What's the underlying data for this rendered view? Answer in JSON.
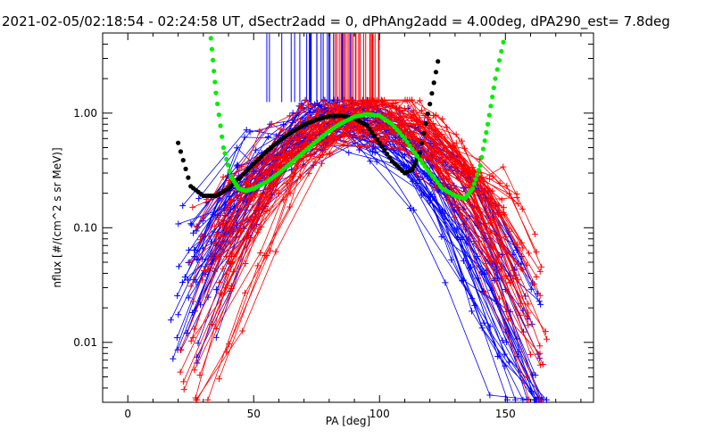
{
  "chart_data": {
    "type": "line",
    "title": "2021-02-05/02:18:54 - 02:24:58 UT, dSectr2add = 0, dPhAng2add = 4.00deg, dPA290_est=   7.8deg",
    "xlabel": "PA [deg]",
    "ylabel": "nflux [#/(cm^2 s sr MeV)]",
    "xlim": [
      -10,
      185
    ],
    "ylim": [
      0.003,
      5.0
    ],
    "yscale": "log",
    "grid": false,
    "x_ticks": [
      0,
      50,
      100,
      150
    ],
    "x_tick_labels": [
      "0",
      "50",
      "100",
      "150"
    ],
    "y_ticks": [
      0.01,
      0.1,
      1.0
    ],
    "y_tick_labels": [
      "0.01",
      "0.10",
      "1.00"
    ],
    "colors": {
      "blue_series": "#0000ff",
      "red_series": "#ff0000",
      "black_fit": "#000000",
      "green_fit": "#00ee00"
    },
    "series": [
      {
        "color": "#0000ff",
        "marker": "plus",
        "profile": {
          "peak_pa": 85,
          "peak_flux": 0.9,
          "pa_range": [
            18,
            165
          ],
          "low_flux_range": [
            0.004,
            0.25
          ]
        },
        "spikes_pa_range": [
          55,
          93
        ]
      },
      {
        "color": "#ff0000",
        "marker": "plus",
        "profile": {
          "peak_pa": 95,
          "peak_flux": 0.95,
          "pa_range": [
            22,
            165
          ],
          "low_flux_range": [
            0.004,
            0.2
          ]
        },
        "spikes_pa_range": [
          82,
          100
        ]
      },
      {
        "color": "#000000",
        "marker": "dot",
        "x": [
          20,
          25,
          30,
          35,
          40,
          45,
          50,
          55,
          60,
          65,
          70,
          75,
          80,
          85,
          90,
          95,
          100,
          105,
          110,
          113,
          116,
          120,
          124
        ],
        "y": [
          0.55,
          0.23,
          0.19,
          0.19,
          0.22,
          0.28,
          0.36,
          0.46,
          0.57,
          0.68,
          0.79,
          0.88,
          0.94,
          0.95,
          0.9,
          0.78,
          0.55,
          0.38,
          0.3,
          0.32,
          0.45,
          1.2,
          3.5
        ]
      },
      {
        "color": "#00ee00",
        "marker": "dot",
        "x": [
          33,
          35,
          38,
          41,
          44,
          47,
          50,
          55,
          60,
          65,
          70,
          75,
          80,
          85,
          90,
          95,
          100,
          105,
          110,
          115,
          120,
          125,
          130,
          134,
          137,
          140,
          143,
          146,
          150
        ],
        "y": [
          4.5,
          1.5,
          0.5,
          0.28,
          0.22,
          0.21,
          0.22,
          0.25,
          0.3,
          0.37,
          0.46,
          0.57,
          0.7,
          0.82,
          0.93,
          0.98,
          0.95,
          0.8,
          0.6,
          0.42,
          0.3,
          0.22,
          0.19,
          0.18,
          0.22,
          0.35,
          0.8,
          2.0,
          5.0
        ]
      }
    ]
  }
}
